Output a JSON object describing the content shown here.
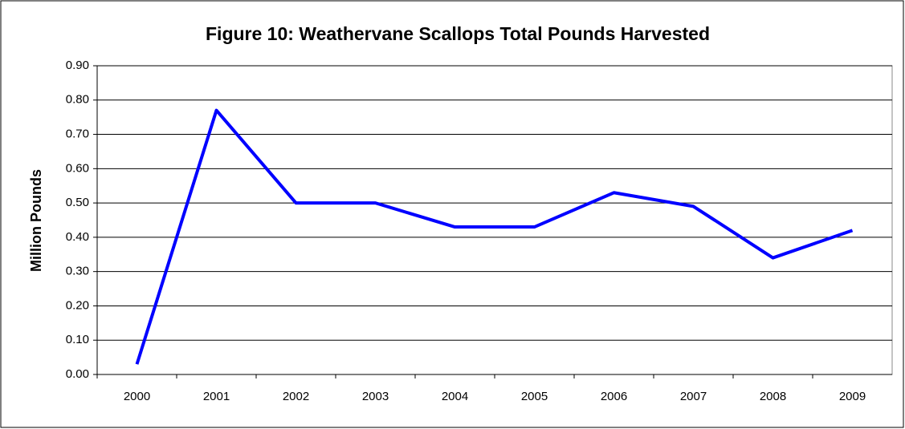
{
  "chart_data": {
    "type": "line",
    "title": "Figure 10: Weathervane Scallops Total Pounds Harvested",
    "y_label": "Million Pounds",
    "categories": [
      "2000",
      "2001",
      "2002",
      "2003",
      "2004",
      "2005",
      "2006",
      "2007",
      "2008",
      "2009"
    ],
    "series": [
      {
        "name": "Total Pounds Harvested",
        "color": "#0000ff",
        "values": [
          0.03,
          0.77,
          0.5,
          0.5,
          0.43,
          0.43,
          0.53,
          0.49,
          0.34,
          0.42
        ]
      }
    ],
    "ylim": [
      0,
      0.9
    ],
    "yticks": [
      {
        "value": 0,
        "label": "0.00"
      },
      {
        "value": 0.1,
        "label": "0.10"
      },
      {
        "value": 0.2,
        "label": "0.20"
      },
      {
        "value": 0.3,
        "label": "0.30"
      },
      {
        "value": 0.4,
        "label": "0.40"
      },
      {
        "value": 0.5,
        "label": "0.50"
      },
      {
        "value": 0.6,
        "label": "0.60"
      },
      {
        "value": 0.7,
        "label": "0.70"
      },
      {
        "value": 0.8,
        "label": "0.80"
      },
      {
        "value": 0.9,
        "label": "0.90"
      }
    ],
    "grid": true
  }
}
